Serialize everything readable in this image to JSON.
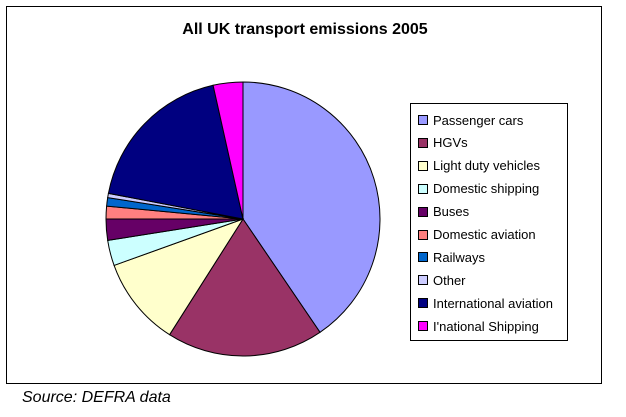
{
  "chart_data": {
    "type": "pie",
    "title": "All UK transport emissions 2005",
    "legend_position": "right",
    "categories": [
      "Passenger cars",
      "HGVs",
      "Light duty vehicles",
      "Domestic shipping",
      "Buses",
      "Domestic aviation",
      "Railways",
      "Other",
      "International aviation",
      "I'national Shipping"
    ],
    "values": [
      40.5,
      18.5,
      10.5,
      3.0,
      2.5,
      1.5,
      1.0,
      0.5,
      18.5,
      3.5
    ],
    "unit": "%",
    "colors": [
      "#9999ff",
      "#993366",
      "#ffffcc",
      "#ccffff",
      "#660066",
      "#ff8080",
      "#0066cc",
      "#ccccff",
      "#000080",
      "#ff00ff"
    ],
    "start_angle_deg": 0,
    "direction": "clockwise"
  },
  "source": "Source: DEFRA data"
}
